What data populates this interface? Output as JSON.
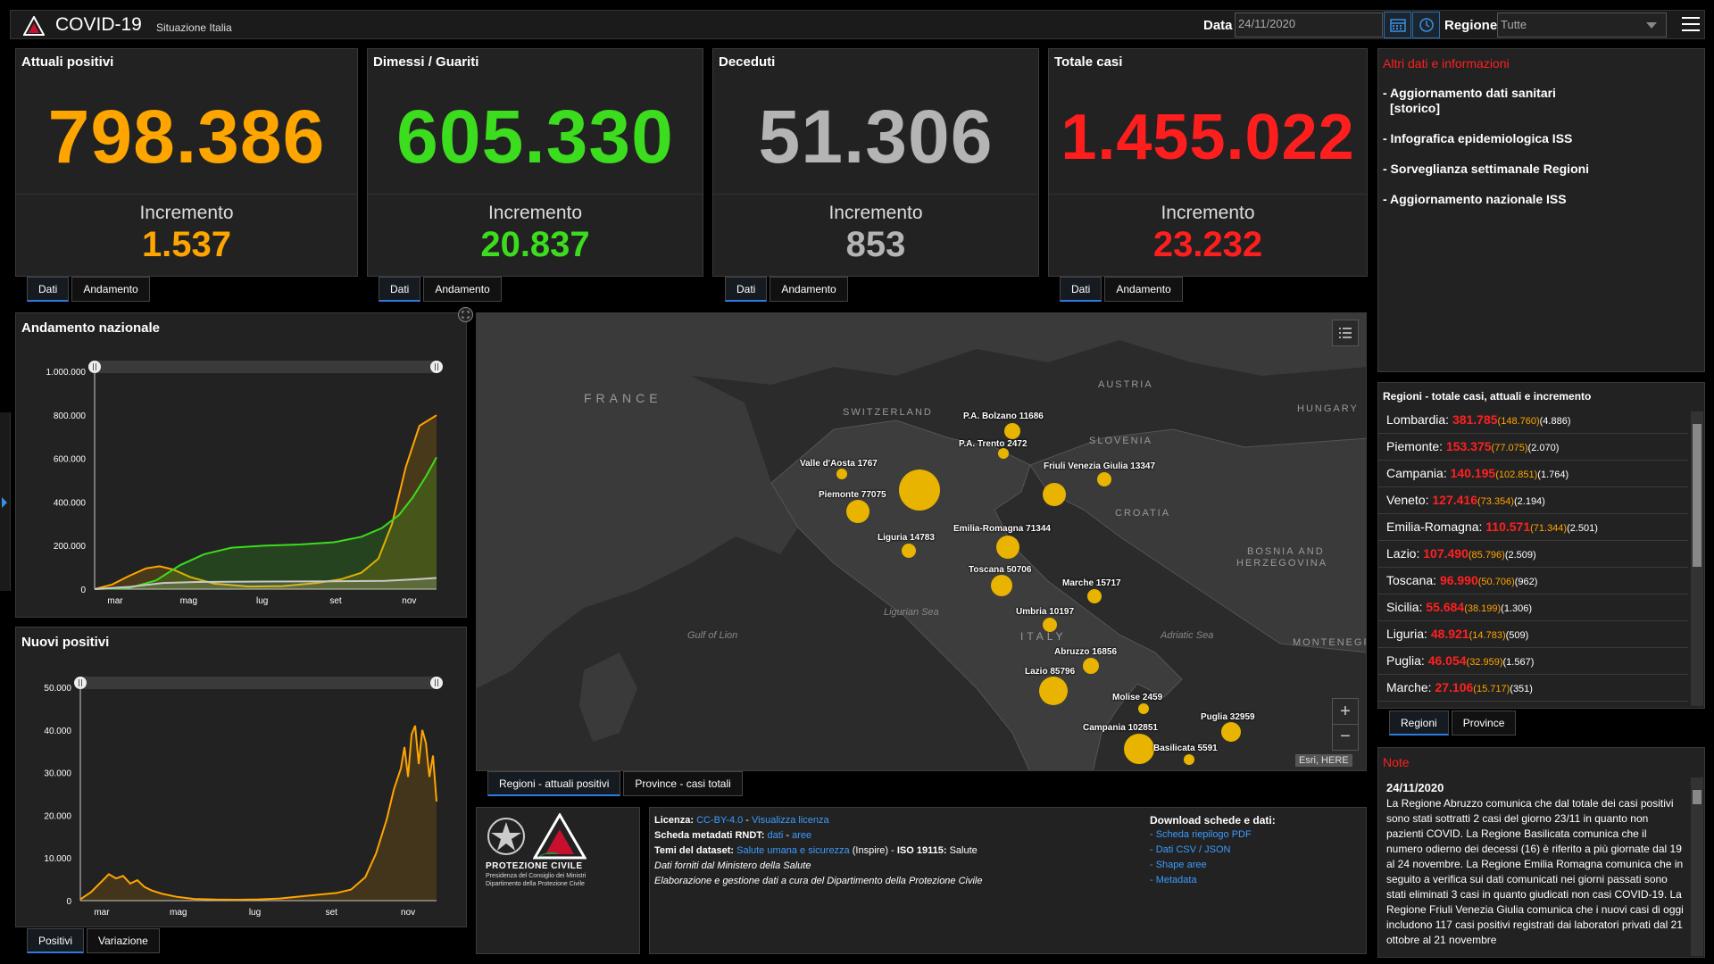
{
  "header": {
    "title": "COVID-19",
    "subtitle": "Situazione Italia",
    "date_label": "Data",
    "date_value": "24/11/2020",
    "region_label": "Regione",
    "region_value": "Tutte"
  },
  "colors": {
    "orange": "#ffa500",
    "green": "#3cdc1e",
    "grey": "#b4b4b4",
    "red": "#ff1e1e",
    "accent": "#2d7be0"
  },
  "cards": [
    {
      "title": "Attuali positivi",
      "value": "798.386",
      "inc_label": "Incremento",
      "inc_value": "1.537",
      "tabs": [
        "Dati",
        "Andamento"
      ]
    },
    {
      "title": "Dimessi / Guariti",
      "value": "605.330",
      "inc_label": "Incremento",
      "inc_value": "20.837",
      "tabs": [
        "Dati",
        "Andamento"
      ]
    },
    {
      "title": "Deceduti",
      "value": "51.306",
      "inc_label": "Incremento",
      "inc_value": "853",
      "tabs": [
        "Dati",
        "Andamento"
      ]
    },
    {
      "title": "Totale casi",
      "value": "1.455.022",
      "inc_label": "Incremento",
      "inc_value": "23.232",
      "tabs": [
        "Dati",
        "Andamento"
      ]
    }
  ],
  "info": {
    "title": "Altri dati e informazioni",
    "links": [
      "- Aggiornamento dati sanitari",
      "[storico]",
      "- Infografica epidemiologica ISS",
      "- Sorveglianza settimanale Regioni",
      "- Aggiornamento nazionale ISS"
    ]
  },
  "chart_data": [
    {
      "type": "area",
      "title": "Andamento nazionale",
      "x": [
        "mar",
        "mag",
        "lug",
        "set",
        "nov"
      ],
      "yticks": [
        "0",
        "200.000",
        "400.000",
        "600.000",
        "800.000",
        "1.000.000"
      ],
      "ylim": [
        0,
        1000000
      ],
      "series": [
        {
          "color": "#ffa500",
          "points": [
            [
              0,
              0
            ],
            [
              0.05,
              20000
            ],
            [
              0.1,
              60000
            ],
            [
              0.15,
              95000
            ],
            [
              0.19,
              105000
            ],
            [
              0.23,
              90000
            ],
            [
              0.28,
              55000
            ],
            [
              0.35,
              25000
            ],
            [
              0.45,
              12000
            ],
            [
              0.55,
              14000
            ],
            [
              0.65,
              28000
            ],
            [
              0.72,
              45000
            ],
            [
              0.78,
              75000
            ],
            [
              0.83,
              140000
            ],
            [
              0.87,
              300000
            ],
            [
              0.91,
              560000
            ],
            [
              0.95,
              750000
            ],
            [
              1.0,
              798386
            ]
          ]
        },
        {
          "color": "#3cdc1e",
          "points": [
            [
              0,
              0
            ],
            [
              0.1,
              5000
            ],
            [
              0.18,
              40000
            ],
            [
              0.25,
              110000
            ],
            [
              0.32,
              160000
            ],
            [
              0.4,
              190000
            ],
            [
              0.5,
              200000
            ],
            [
              0.6,
              205000
            ],
            [
              0.7,
              215000
            ],
            [
              0.78,
              240000
            ],
            [
              0.84,
              280000
            ],
            [
              0.89,
              340000
            ],
            [
              0.93,
              420000
            ],
            [
              0.97,
              520000
            ],
            [
              1.0,
              605330
            ]
          ]
        },
        {
          "color": "#c8c8c8",
          "points": [
            [
              0,
              0
            ],
            [
              0.1,
              10000
            ],
            [
              0.2,
              28000
            ],
            [
              0.3,
              33000
            ],
            [
              0.5,
              35000
            ],
            [
              0.7,
              36000
            ],
            [
              0.85,
              38000
            ],
            [
              0.95,
              46000
            ],
            [
              1.0,
              51306
            ]
          ]
        }
      ]
    },
    {
      "type": "line",
      "title": "Nuovi positivi",
      "x": [
        "mar",
        "mag",
        "lug",
        "set",
        "nov"
      ],
      "yticks": [
        "0",
        "10.000",
        "20.000",
        "30.000",
        "40.000",
        "50.000"
      ],
      "ylim": [
        0,
        50000
      ],
      "series": [
        {
          "color": "#ffa500",
          "points": [
            [
              0,
              300
            ],
            [
              0.03,
              2000
            ],
            [
              0.06,
              4500
            ],
            [
              0.08,
              6200
            ],
            [
              0.1,
              5200
            ],
            [
              0.12,
              5800
            ],
            [
              0.14,
              4000
            ],
            [
              0.16,
              4800
            ],
            [
              0.18,
              3200
            ],
            [
              0.2,
              2400
            ],
            [
              0.23,
              1600
            ],
            [
              0.27,
              900
            ],
            [
              0.32,
              400
            ],
            [
              0.38,
              250
            ],
            [
              0.44,
              220
            ],
            [
              0.5,
              300
            ],
            [
              0.56,
              500
            ],
            [
              0.62,
              1000
            ],
            [
              0.68,
              1500
            ],
            [
              0.72,
              1800
            ],
            [
              0.76,
              2600
            ],
            [
              0.8,
              5500
            ],
            [
              0.83,
              11000
            ],
            [
              0.86,
              19000
            ],
            [
              0.88,
              26000
            ],
            [
              0.9,
              31000
            ],
            [
              0.91,
              36000
            ],
            [
              0.92,
              29000
            ],
            [
              0.93,
              39000
            ],
            [
              0.94,
              41000
            ],
            [
              0.95,
              32000
            ],
            [
              0.96,
              40000
            ],
            [
              0.97,
              37000
            ],
            [
              0.98,
              29000
            ],
            [
              0.99,
              34000
            ],
            [
              1.0,
              23232
            ]
          ]
        }
      ]
    }
  ],
  "chart_tabs_1": [
    "Positivi",
    "Variazione"
  ],
  "map": {
    "countries": [
      "FRANCE",
      "SWITZERLAND",
      "AUSTRIA",
      "HUNGARY",
      "SLOVENIA",
      "CROATIA",
      "BOSNIA AND",
      "HERZEGOVINA",
      "ITALY",
      "MONTENEGRO"
    ],
    "seas": [
      "Ligurian Sea",
      "Gulf of Lion",
      "Adriatic Sea"
    ],
    "bubbles": [
      "P.A. Bolzano 11686",
      "P.A. Trento 2472",
      "Valle d'Aosta 1767",
      "Piemonte 77075",
      "Friuli Venezia Giulia 13347",
      "Emilia-Romagna 71344",
      "Liguria 14783",
      "Toscana 50706",
      "Marche 15717",
      "Umbria 10197",
      "Abruzzo 16856",
      "Lazio 85796",
      "Molise 2459",
      "Puglia 32959",
      "Campania 102851",
      "Basilicata 5591"
    ],
    "attribution": "Esri, HERE",
    "tabs": [
      "Regioni - attuali positivi",
      "Province - casi totali"
    ]
  },
  "regions": {
    "title": "Regioni - totale casi, attuali e incremento",
    "rows": [
      {
        "name": "Lombardia:",
        "total": "381.785",
        "attuali": "(148.760)",
        "inc": "(4.886)"
      },
      {
        "name": "Piemonte:",
        "total": "153.375",
        "attuali": "(77.075)",
        "inc": "(2.070)"
      },
      {
        "name": "Campania:",
        "total": "140.195",
        "attuali": "(102.851)",
        "inc": "(1.764)"
      },
      {
        "name": "Veneto:",
        "total": "127.416",
        "attuali": "(73.354)",
        "inc": "(2.194)"
      },
      {
        "name": "Emilia-Romagna:",
        "total": "110.571",
        "attuali": "(71.344)",
        "inc": "(2.501)"
      },
      {
        "name": "Lazio:",
        "total": "107.490",
        "attuali": "(85.796)",
        "inc": "(2.509)"
      },
      {
        "name": "Toscana:",
        "total": "96.990",
        "attuali": "(50.706)",
        "inc": "(962)"
      },
      {
        "name": "Sicilia:",
        "total": "55.684",
        "attuali": "(38.199)",
        "inc": "(1.306)"
      },
      {
        "name": "Liguria:",
        "total": "48.921",
        "attuali": "(14.783)",
        "inc": "(509)"
      },
      {
        "name": "Puglia:",
        "total": "46.054",
        "attuali": "(32.959)",
        "inc": "(1.567)"
      },
      {
        "name": "Marche:",
        "total": "27.106",
        "attuali": "(15.717)",
        "inc": "(351)"
      }
    ],
    "tabs": [
      "Regioni",
      "Province"
    ]
  },
  "notes": {
    "title": "Note",
    "date": "24/11/2020",
    "text": "La Regione Abruzzo comunica che dal totale dei casi positivi sono stati sottratti 2 casi del giorno 23/11 in quanto non pazienti COVID. La Regione Basilicata comunica che il numero odierno dei decessi (16) è riferito a più giornate dal 19 al 24 novembre. La Regione Emilia Romagna comunica che in seguito a verifica sui dati comunicati nei giorni passati sono stati eliminati 3 casi in quanto giudicati non casi COVID-19. La Regione Friuli Venezia Giulia comunica che i nuovi casi di oggi includono 117 casi positivi registrati dai laboratori privati dal 21 ottobre al 21 novembre"
  },
  "logo": {
    "name": "PROTEZIONE CIVILE",
    "line1": "Presidenza del Consiglio dei Ministri",
    "line2": "Dipartimento della Protezione Civile"
  },
  "meta": {
    "licenza_label": "Licenza:",
    "licenza_value": "CC-BY-4.0",
    "licenza_sep": " - ",
    "licenza_link": "Visualizza licenza",
    "scheda_label": "Scheda metadati RNDT:",
    "scheda_link1": "dati",
    "scheda_sep": " - ",
    "scheda_link2": "aree",
    "temi_label": "Temi del dataset:",
    "temi_link": "Salute umana e sicurezza",
    "temi_rest": " (Inspire) - ",
    "iso_label": "ISO 19115:",
    "iso_value": " Salute",
    "line4": "Dati forniti dal Ministero della Salute",
    "line5": "Elaborazione e gestione dati a cura del Dipartimento della Protezione Civile",
    "download_title": "Download schede e dati:",
    "downloads": [
      "- Scheda riepilogo PDF",
      "- Dati CSV / JSON",
      "- Shape aree",
      "- Metadata"
    ]
  }
}
